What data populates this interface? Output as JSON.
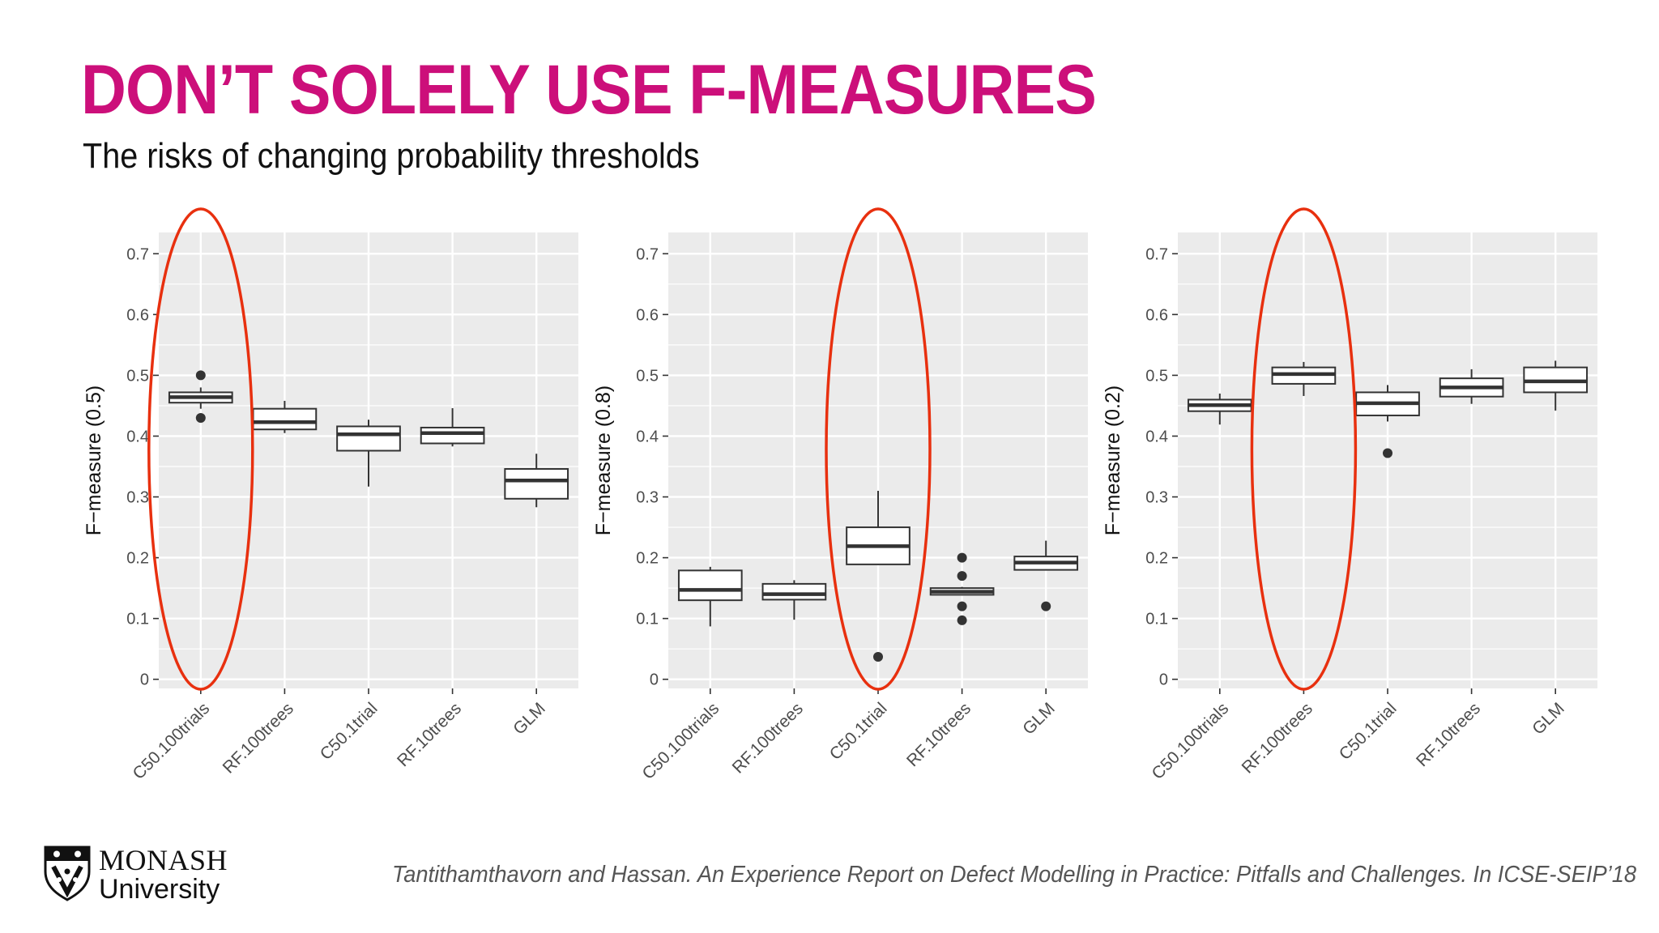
{
  "slide": {
    "title": "DON’T SOLELY USE F-MEASURES",
    "subtitle": "The risks of changing probability thresholds",
    "citation": "Tantithamthavorn and Hassan. An Experience Report on Defect Modelling in Practice: Pitfalls and Challenges. In ICSE-SEIP’18"
  },
  "logo": {
    "name": "MONASH",
    "sub": "University"
  },
  "colors": {
    "title": "#cc0f7a",
    "panel_bg": "#ebebeb",
    "grid": "#ffffff",
    "highlight": "#e8300f",
    "box_line": "#333333"
  },
  "chart_data": [
    {
      "type": "boxplot",
      "ylabel": "F−measure (0.5)",
      "ylim": [
        -0.015,
        0.735
      ],
      "yticks": [
        0,
        0.1,
        0.2,
        0.3,
        0.4,
        0.5,
        0.6,
        0.7
      ],
      "ytick_labels": [
        "0",
        "0.1",
        "0.2",
        "0.3",
        "0.4",
        "0.5",
        "0.6",
        "0.7"
      ],
      "categories": [
        "C50.100trials",
        "RF.100trees",
        "C50.1trial",
        "RF.10trees",
        "GLM"
      ],
      "boxes": [
        {
          "whisker_low": 0.445,
          "q1": 0.455,
          "median": 0.464,
          "q3": 0.472,
          "whisker_high": 0.48,
          "outliers": [
            0.5,
            0.43
          ]
        },
        {
          "whisker_low": 0.405,
          "q1": 0.411,
          "median": 0.423,
          "q3": 0.445,
          "whisker_high": 0.458,
          "outliers": []
        },
        {
          "whisker_low": 0.317,
          "q1": 0.376,
          "median": 0.403,
          "q3": 0.416,
          "whisker_high": 0.427,
          "outliers": []
        },
        {
          "whisker_low": 0.383,
          "q1": 0.388,
          "median": 0.405,
          "q3": 0.414,
          "whisker_high": 0.446,
          "outliers": []
        },
        {
          "whisker_low": 0.283,
          "q1": 0.297,
          "median": 0.327,
          "q3": 0.346,
          "whisker_high": 0.371,
          "outliers": []
        }
      ],
      "highlighted": "C50.100trials"
    },
    {
      "type": "boxplot",
      "ylabel": "F−measure (0.8)",
      "ylim": [
        -0.015,
        0.735
      ],
      "yticks": [
        0,
        0.1,
        0.2,
        0.3,
        0.4,
        0.5,
        0.6,
        0.7
      ],
      "ytick_labels": [
        "0",
        "0.1",
        "0.2",
        "0.3",
        "0.4",
        "0.5",
        "0.6",
        "0.7"
      ],
      "categories": [
        "C50.100trials",
        "RF.100trees",
        "C50.1trial",
        "RF.10trees",
        "GLM"
      ],
      "boxes": [
        {
          "whisker_low": 0.087,
          "q1": 0.13,
          "median": 0.147,
          "q3": 0.179,
          "whisker_high": 0.185,
          "outliers": []
        },
        {
          "whisker_low": 0.098,
          "q1": 0.131,
          "median": 0.14,
          "q3": 0.157,
          "whisker_high": 0.163,
          "outliers": []
        },
        {
          "whisker_low": 0.188,
          "q1": 0.189,
          "median": 0.219,
          "q3": 0.25,
          "whisker_high": 0.31,
          "outliers": [
            0.037
          ]
        },
        {
          "whisker_low": 0.138,
          "q1": 0.139,
          "median": 0.144,
          "q3": 0.15,
          "whisker_high": 0.152,
          "outliers": [
            0.2,
            0.17,
            0.12,
            0.097
          ]
        },
        {
          "whisker_low": 0.18,
          "q1": 0.18,
          "median": 0.192,
          "q3": 0.202,
          "whisker_high": 0.228,
          "outliers": [
            0.12
          ]
        }
      ],
      "highlighted": "C50.1trial"
    },
    {
      "type": "boxplot",
      "ylabel": "F−measure (0.2)",
      "ylim": [
        -0.015,
        0.735
      ],
      "yticks": [
        0,
        0.1,
        0.2,
        0.3,
        0.4,
        0.5,
        0.6,
        0.7
      ],
      "ytick_labels": [
        "0",
        "0.1",
        "0.2",
        "0.3",
        "0.4",
        "0.5",
        "0.6",
        "0.7"
      ],
      "categories": [
        "C50.100trials",
        "RF.100trees",
        "C50.1trial",
        "RF.10trees",
        "GLM"
      ],
      "boxes": [
        {
          "whisker_low": 0.419,
          "q1": 0.441,
          "median": 0.451,
          "q3": 0.46,
          "whisker_high": 0.47,
          "outliers": []
        },
        {
          "whisker_low": 0.466,
          "q1": 0.486,
          "median": 0.502,
          "q3": 0.513,
          "whisker_high": 0.522,
          "outliers": []
        },
        {
          "whisker_low": 0.424,
          "q1": 0.434,
          "median": 0.454,
          "q3": 0.472,
          "whisker_high": 0.484,
          "outliers": [
            0.372
          ]
        },
        {
          "whisker_low": 0.453,
          "q1": 0.465,
          "median": 0.48,
          "q3": 0.495,
          "whisker_high": 0.51,
          "outliers": []
        },
        {
          "whisker_low": 0.442,
          "q1": 0.472,
          "median": 0.49,
          "q3": 0.513,
          "whisker_high": 0.524,
          "outliers": []
        }
      ],
      "highlighted": "RF.100trees"
    }
  ]
}
